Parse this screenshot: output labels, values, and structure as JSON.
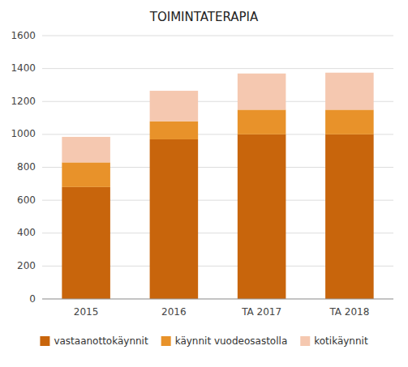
{
  "chart_data": {
    "type": "bar",
    "title": "TOIMINTATERAPIA",
    "categories": [
      "2015",
      "2016",
      "TA 2017",
      "TA 2018"
    ],
    "series": [
      {
        "name": "vastaanottokäynnit",
        "color": "#C8650C",
        "values": [
          680,
          970,
          1000,
          1000
        ]
      },
      {
        "name": "käynnit vuodeosastolla",
        "color": "#E8922A",
        "values": [
          150,
          110,
          150,
          150
        ]
      },
      {
        "name": "kotikäynnit",
        "color": "#F5C8B0",
        "values": [
          155,
          185,
          220,
          225
        ]
      }
    ],
    "stacked": true,
    "ylim": [
      0,
      1600
    ],
    "yticks": [
      0,
      200,
      400,
      600,
      800,
      1000,
      1200,
      1400,
      1600
    ],
    "grid": true,
    "legend": "bottom"
  }
}
